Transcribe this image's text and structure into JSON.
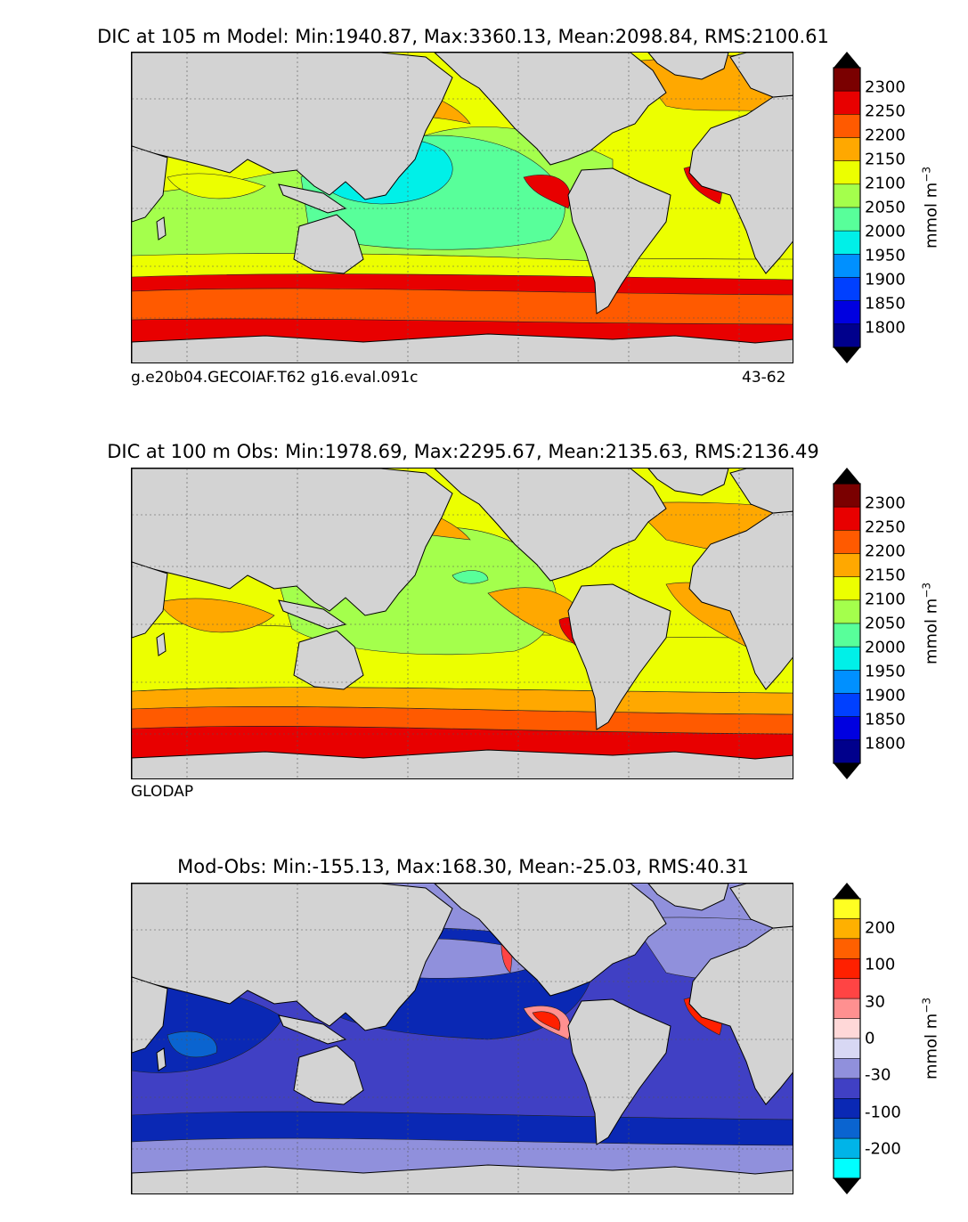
{
  "chart_data": [
    {
      "type": "heatmap",
      "title": "DIC at 105 m Model: Min:1940.87, Max:3360.13, Mean:2098.84, RMS:2100.61",
      "footer_left": "g.e20b04.GECOIAF.T62 g16.eval.091c",
      "footer_right": "43-62",
      "colorbar": {
        "label": "mmol m",
        "label_superscript": "−3",
        "ticks": [
          "2300",
          "2250",
          "2200",
          "2150",
          "2100",
          "2050",
          "2000",
          "1950",
          "1900",
          "1850",
          "1800"
        ],
        "colors": [
          "#7a0000",
          "#e80000",
          "#ff5a00",
          "#ffa800",
          "#ecff00",
          "#a4ff4c",
          "#58ff9a",
          "#00f0e8",
          "#0090ff",
          "#0040ff",
          "#0000e0",
          "#00008c"
        ],
        "extend": "both"
      }
    },
    {
      "type": "heatmap",
      "title": "DIC at 100 m Obs: Min:1978.69, Max:2295.67, Mean:2135.63, RMS:2136.49",
      "footer_left": "GLODAP",
      "footer_right": "",
      "colorbar": {
        "label": "mmol m",
        "label_superscript": "−3",
        "ticks": [
          "2300",
          "2250",
          "2200",
          "2150",
          "2100",
          "2050",
          "2000",
          "1950",
          "1900",
          "1850",
          "1800"
        ],
        "colors": [
          "#7a0000",
          "#e80000",
          "#ff5a00",
          "#ffa800",
          "#ecff00",
          "#a4ff4c",
          "#58ff9a",
          "#00f0e8",
          "#0090ff",
          "#0040ff",
          "#0000e0",
          "#00008c"
        ],
        "extend": "both"
      }
    },
    {
      "type": "heatmap",
      "title": "Mod-Obs: Min:-155.13, Max:168.30, Mean:-25.03, RMS:40.31",
      "footer_left": "",
      "footer_right": "",
      "colorbar": {
        "label": "mmol m",
        "label_superscript": "−3",
        "ticks": [
          "200",
          "100",
          "30",
          "0",
          "-30",
          "-100",
          "-200"
        ],
        "colors": [
          "#ffff22",
          "#ffb000",
          "#ff6000",
          "#ff2000",
          "#ff4444",
          "#ff9090",
          "#ffd8d8",
          "#d8d8f4",
          "#9090dc",
          "#4040c4",
          "#0a28b4",
          "#0a64d0",
          "#00b4e8",
          "#00ffff"
        ],
        "extend": "both"
      }
    }
  ],
  "colors": {
    "land": "#d3d3d3",
    "missing": "#ffffff",
    "coastline": "#000000"
  }
}
